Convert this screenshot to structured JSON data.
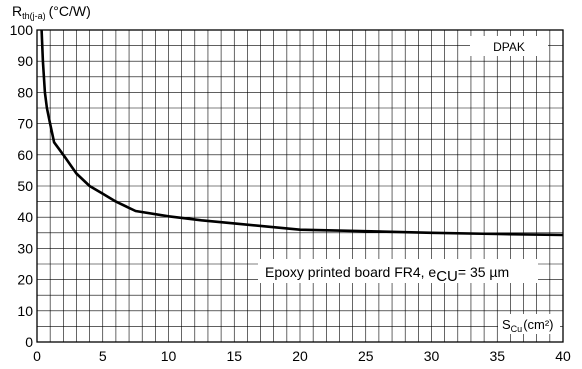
{
  "chart_data": {
    "type": "line",
    "ylabel": {
      "main": "R",
      "sub": "th(j-a)",
      "unit": "(°C/W)"
    },
    "xlabel": {
      "main": "S",
      "sub": "Cu",
      "unit": "(cm²)"
    },
    "legend": "DPAK",
    "annotation": {
      "prefix": "Epoxy printed board FR4, e",
      "sub": "CU",
      "suffix": "= 35 µm"
    },
    "xlim": [
      0,
      40
    ],
    "ylim": [
      0,
      100
    ],
    "x_grid_step": 1,
    "y_grid_step": 5,
    "x_ticks": [
      "0",
      "5",
      "10",
      "15",
      "20",
      "25",
      "30",
      "35",
      "40"
    ],
    "y_ticks": [
      "0",
      "10",
      "20",
      "30",
      "40",
      "50",
      "60",
      "70",
      "80",
      "90",
      "100"
    ],
    "grid": true,
    "series": [
      {
        "x": [
          0.35,
          0.45,
          0.6,
          0.75,
          1,
          1.3,
          2,
          3,
          4,
          5,
          6,
          7.5,
          10,
          12.5,
          15,
          17.5,
          20,
          25,
          30,
          35,
          40
        ],
        "y": [
          100,
          90,
          80,
          75,
          70,
          64,
          60,
          54,
          50,
          47.5,
          45,
          42,
          40.3,
          39,
          38,
          37,
          36,
          35.5,
          35,
          34.6,
          34.3
        ]
      }
    ]
  }
}
